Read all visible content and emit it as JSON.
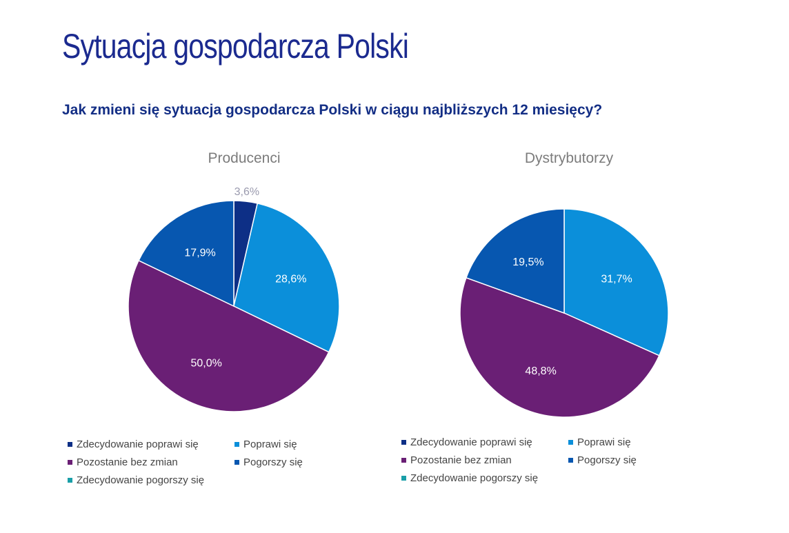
{
  "page": {
    "title": "Sytuacja gospodarcza Polski",
    "question": "Jak zmieni się sytuacja gospodarcza Polski w ciągu najbliższych 12 miesięcy?"
  },
  "colors": {
    "zdecydowanie_poprawi": "#0d2f86",
    "poprawi": "#0b8fda",
    "bez_zmian": "#6a1f75",
    "pogorszy": "#0757b0",
    "zdecydowanie_pogorszy": "#1a9fa8"
  },
  "legend": [
    {
      "key": "zdecydowanie_poprawi",
      "label": "Zdecydowanie poprawi się"
    },
    {
      "key": "poprawi",
      "label": "Poprawi się"
    },
    {
      "key": "bez_zmian",
      "label": "Pozostanie bez zmian"
    },
    {
      "key": "pogorszy",
      "label": "Pogorszy się"
    },
    {
      "key": "zdecydowanie_pogorszy",
      "label": "Zdecydowanie pogorszy się"
    }
  ],
  "chart_data": [
    {
      "type": "pie",
      "title": "Producenci",
      "slices": [
        {
          "key": "zdecydowanie_poprawi",
          "label": "Zdecydowanie poprawi się",
          "value": 3.6,
          "value_label": "3,6%"
        },
        {
          "key": "poprawi",
          "label": "Poprawi się",
          "value": 28.6,
          "value_label": "28,6%"
        },
        {
          "key": "bez_zmian",
          "label": "Pozostanie bez zmian",
          "value": 50.0,
          "value_label": "50,0%"
        },
        {
          "key": "pogorszy",
          "label": "Pogorszy się",
          "value": 17.9,
          "value_label": "17,9%"
        },
        {
          "key": "zdecydowanie_pogorszy",
          "label": "Zdecydowanie pogorszy się",
          "value": 0,
          "value_label": ""
        }
      ]
    },
    {
      "type": "pie",
      "title": "Dystrybutorzy",
      "slices": [
        {
          "key": "zdecydowanie_poprawi",
          "label": "Zdecydowanie poprawi się",
          "value": 0,
          "value_label": ""
        },
        {
          "key": "poprawi",
          "label": "Poprawi się",
          "value": 31.7,
          "value_label": "31,7%"
        },
        {
          "key": "bez_zmian",
          "label": "Pozostanie bez zmian",
          "value": 48.8,
          "value_label": "48,8%"
        },
        {
          "key": "pogorszy",
          "label": "Pogorszy się",
          "value": 19.5,
          "value_label": "19,5%"
        },
        {
          "key": "zdecydowanie_pogorszy",
          "label": "Zdecydowanie pogorszy się",
          "value": 0,
          "value_label": ""
        }
      ]
    }
  ]
}
